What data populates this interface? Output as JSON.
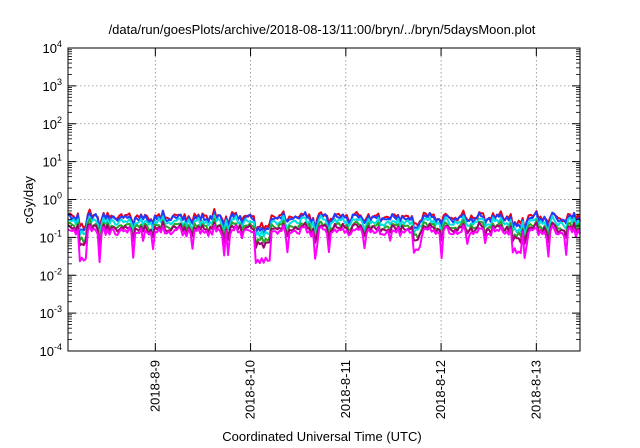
{
  "chart_data": {
    "type": "line",
    "title": "/data/run/goesPlots/archive/2018-08-13/11:00/bryn/../bryn/5daysMoon.plot",
    "xlabel": "Coordinated Universal Time (UTC)",
    "ylabel": "cGy/day",
    "yscale": "log",
    "ylim": [
      0.0001,
      10000
    ],
    "xlim": [
      "2018-08-08 02:00",
      "2018-08-13 11:00"
    ],
    "grid": true,
    "legend": "none",
    "x_ticks": [
      "2018-8-9",
      "2018-8-10",
      "2018-8-11",
      "2018-8-12",
      "2018-8-13"
    ],
    "y_ticks": [
      {
        "base": "10",
        "exp": "-4"
      },
      {
        "base": "10",
        "exp": "-3"
      },
      {
        "base": "10",
        "exp": "-2"
      },
      {
        "base": "10",
        "exp": "-1"
      },
      {
        "base": "10",
        "exp": "0"
      },
      {
        "base": "10",
        "exp": "1"
      },
      {
        "base": "10",
        "exp": "2"
      },
      {
        "base": "10",
        "exp": "3"
      },
      {
        "base": "10",
        "exp": "4"
      }
    ],
    "series": [
      {
        "color": "#e8001c",
        "level": 0.36,
        "dip_depth": 0.25
      },
      {
        "color": "#1e3cff",
        "level": 0.33,
        "dip_depth": 0.3
      },
      {
        "color": "#00e0e0",
        "level": 0.26,
        "dip_depth": 0.3
      },
      {
        "color": "#2aa52a",
        "level": 0.2,
        "dip_depth": 0.35
      },
      {
        "color": "#a0006e",
        "level": 0.175,
        "dip_depth": 0.4
      },
      {
        "color": "#ff00ff",
        "level": 0.145,
        "dip_depth": 0.75
      }
    ]
  }
}
